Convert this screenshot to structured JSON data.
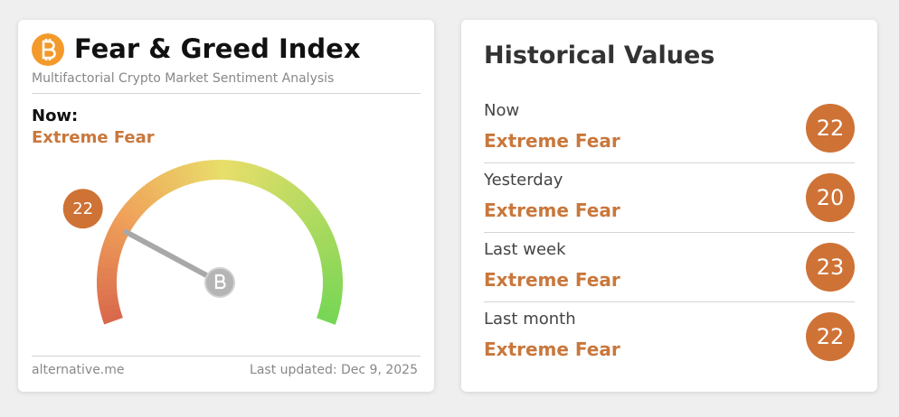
{
  "left_card": {
    "title": "Fear & Greed Index",
    "subtitle": "Multifactorial Crypto Market Sentiment Analysis",
    "now_label": "Now:",
    "classification": "Extreme Fear",
    "gauge": {
      "value": 22,
      "range": [
        0,
        100
      ]
    },
    "source": "alternative.me",
    "updated": "Last updated: Dec 9, 2025"
  },
  "right_card": {
    "title": "Historical Values",
    "rows": [
      {
        "label": "Now",
        "classification": "Extreme Fear",
        "value": 22
      },
      {
        "label": "Yesterday",
        "classification": "Extreme Fear",
        "value": 20
      },
      {
        "label": "Last week",
        "classification": "Extreme Fear",
        "value": 23
      },
      {
        "label": "Last month",
        "classification": "Extreme Fear",
        "value": 22
      }
    ]
  }
}
